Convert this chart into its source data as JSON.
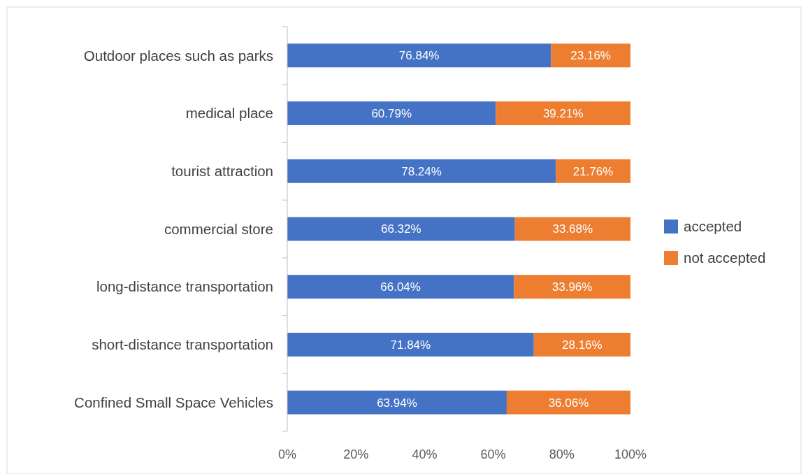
{
  "chart_data": {
    "type": "bar",
    "orientation": "horizontal",
    "stacked": true,
    "categories": [
      "Outdoor places such as parks",
      "medical place",
      "tourist attraction",
      "commercial store",
      "long-distance transportation",
      "short-distance transportation",
      "Confined Small Space Vehicles"
    ],
    "series": [
      {
        "name": "accepted",
        "color": "#4472c4",
        "values": [
          76.84,
          60.79,
          78.24,
          66.32,
          66.04,
          71.84,
          63.94
        ],
        "value_labels": [
          "76.84%",
          "60.79%",
          "78.24%",
          "66.32%",
          "66.04%",
          "71.84%",
          "63.94%"
        ]
      },
      {
        "name": "not accepted",
        "color": "#ed7d31",
        "values": [
          23.16,
          39.21,
          21.76,
          33.68,
          33.96,
          28.16,
          36.06
        ],
        "value_labels": [
          "23.16%",
          "39.21%",
          "21.76%",
          "33.68%",
          "33.96%",
          "28.16%",
          "36.06%"
        ]
      }
    ],
    "xlim": [
      0,
      100
    ],
    "xticks": [
      {
        "value": 0,
        "label": "0%"
      },
      {
        "value": 20,
        "label": "20%"
      },
      {
        "value": 40,
        "label": "40%"
      },
      {
        "value": 60,
        "label": "60%"
      },
      {
        "value": 80,
        "label": "80%"
      },
      {
        "value": 100,
        "label": "100%"
      }
    ],
    "grid": false,
    "legend": "right"
  }
}
